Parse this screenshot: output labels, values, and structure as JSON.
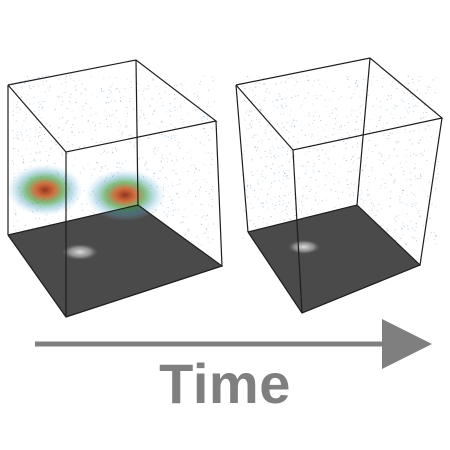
{
  "diagram": {
    "panels": [
      {
        "id": "early",
        "has_blobs": true
      },
      {
        "id": "late",
        "has_blobs": false
      }
    ],
    "arrow": {
      "direction": "right"
    },
    "label": "Time",
    "colors": {
      "outline": "#1e1e1e",
      "floor": "#4a4a4a",
      "speckle": "#7aa6c9",
      "arrow": "#7f7f7f",
      "label": "#7f7f7f"
    }
  }
}
